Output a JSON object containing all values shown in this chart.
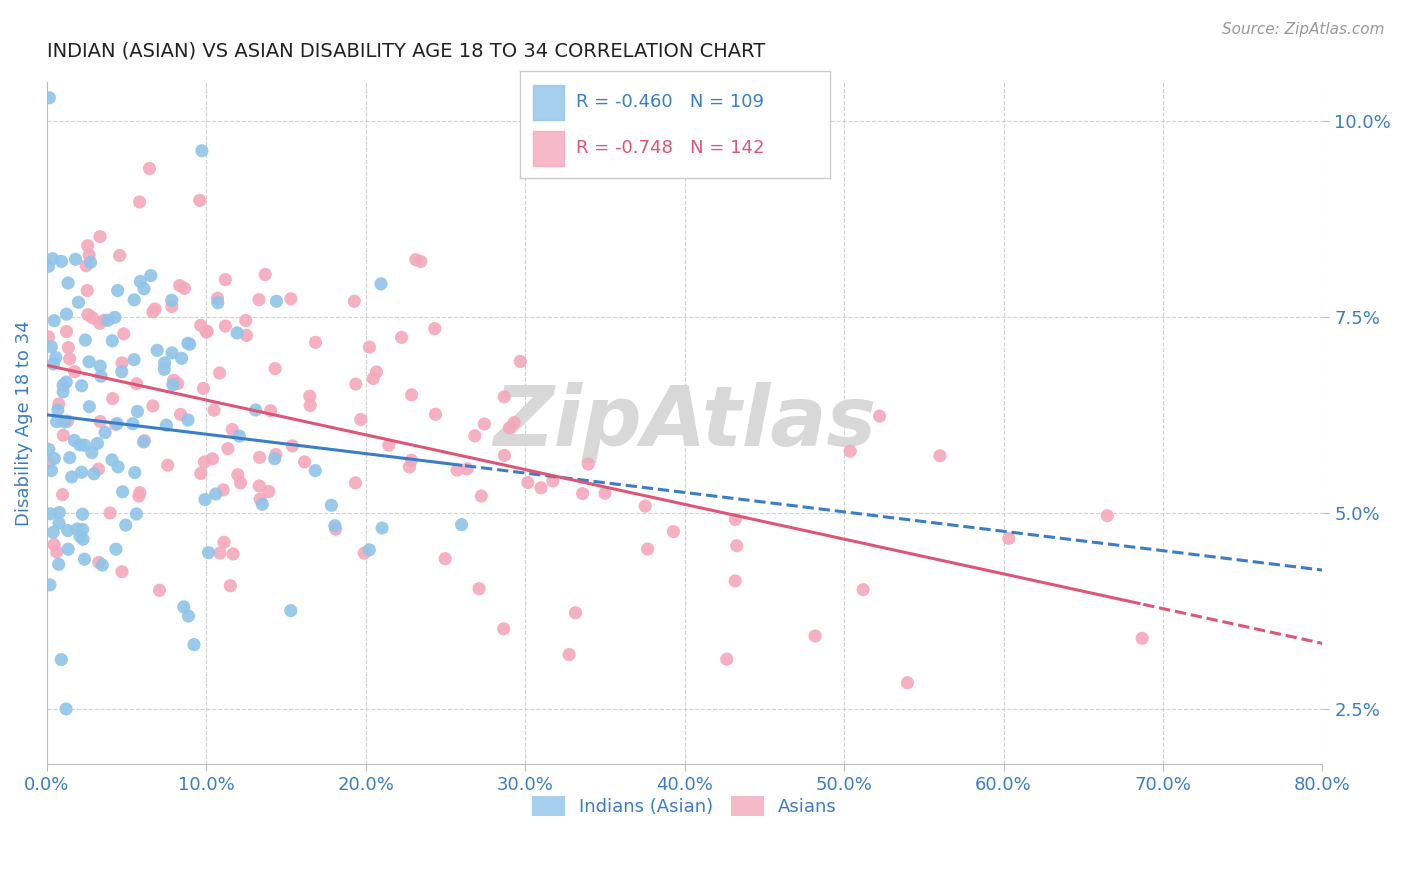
{
  "title": "INDIAN (ASIAN) VS ASIAN DISABILITY AGE 18 TO 34 CORRELATION CHART",
  "source_text": "Source: ZipAtlas.com",
  "ylabel": "Disability Age 18 to 34",
  "xlim": [
    0.0,
    80.0
  ],
  "ylim": [
    1.8,
    10.5
  ],
  "yticks": [
    2.5,
    5.0,
    7.5,
    10.0
  ],
  "xticks": [
    0.0,
    10.0,
    20.0,
    30.0,
    40.0,
    50.0,
    60.0,
    70.0,
    80.0
  ],
  "legend_entries": [
    {
      "label": "R = -0.460   N = 109",
      "color": "#8fc4e8"
    },
    {
      "label": "R = -0.748   N = 142",
      "color": "#f4a8bc"
    }
  ],
  "legend_labels": [
    "Indians (Asian)",
    "Asians"
  ],
  "blue_color": "#8fc4e8",
  "pink_color": "#f4a8bc",
  "blue_line_color": "#3a7dc9",
  "pink_line_color": "#e05575",
  "title_color": "#222222",
  "axis_label_color": "#3a7dc9",
  "tick_color": "#3a7dc9",
  "background_color": "#ffffff",
  "grid_color": "#cccccc",
  "watermark_color": "#d8d8d8",
  "N_blue": 109,
  "N_pink": 142,
  "blue_seed": 42,
  "pink_seed": 7
}
